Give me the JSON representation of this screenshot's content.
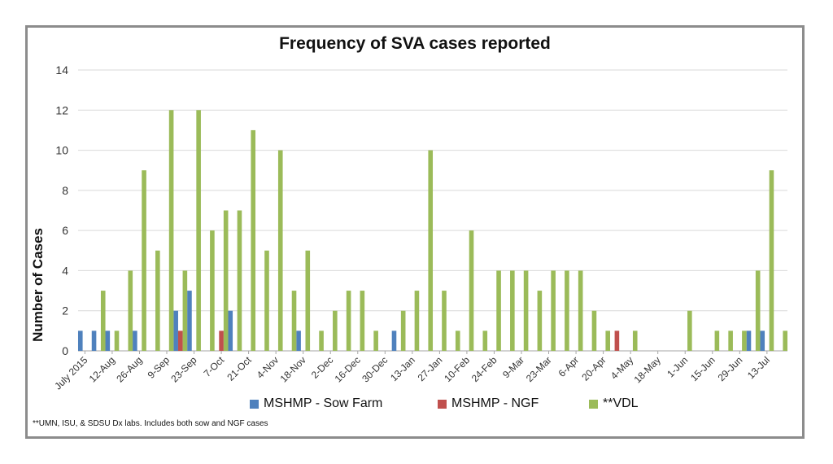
{
  "chart_data": {
    "type": "bar",
    "title": "Frequency of SVA cases reported",
    "ylabel": "Number of Cases",
    "xlabel": "",
    "ylim": [
      0,
      14
    ],
    "yticks": [
      0,
      2,
      4,
      6,
      8,
      10,
      12,
      14
    ],
    "grid": true,
    "legend_position": "bottom",
    "xtick_labels": [
      "July 2015",
      "12-Aug",
      "26-Aug",
      "9-Sep",
      "23-Sep",
      "7-Oct",
      "21-Oct",
      "4-Nov",
      "18-Nov",
      "2-Dec",
      "16-Dec",
      "30-Dec",
      "13-Jan",
      "27-Jan",
      "10-Feb",
      "24-Feb",
      "9-Mar",
      "23-Mar",
      "6-Apr",
      "20-Apr",
      "4-May",
      "18-May",
      "1-Jun",
      "15-Jun",
      "29-Jun",
      "13-Jul"
    ],
    "series": [
      {
        "name": "MSHMP - Sow Farm",
        "color": "#4f81bd",
        "values": [
          1,
          1,
          1,
          0,
          1,
          0,
          0,
          2,
          3,
          0,
          0,
          2,
          0,
          0,
          0,
          0,
          1,
          0,
          0,
          0,
          0,
          0,
          0,
          1,
          0,
          0,
          0,
          0,
          0,
          0,
          0,
          0,
          0,
          0,
          0,
          0,
          0,
          0,
          0,
          0,
          0,
          0,
          0,
          0,
          0,
          0,
          0,
          0,
          0,
          1,
          1,
          0
        ]
      },
      {
        "name": "MSHMP - NGF",
        "color": "#c0504d",
        "values": [
          0,
          0,
          0,
          0,
          0,
          0,
          0,
          1,
          0,
          0,
          1,
          0,
          0,
          0,
          0,
          0,
          0,
          0,
          0,
          0,
          0,
          0,
          0,
          0,
          0,
          0,
          0,
          0,
          0,
          0,
          0,
          0,
          0,
          0,
          0,
          0,
          0,
          0,
          0,
          1,
          0,
          0,
          0,
          0,
          0,
          0,
          0,
          0,
          0,
          0,
          0,
          0
        ]
      },
      {
        "name": "**VDL",
        "color": "#9bbb59",
        "values": [
          0,
          3,
          1,
          4,
          9,
          5,
          12,
          4,
          12,
          6,
          7,
          7,
          11,
          5,
          10,
          3,
          5,
          1,
          2,
          3,
          3,
          1,
          0,
          2,
          3,
          10,
          3,
          1,
          6,
          1,
          4,
          4,
          4,
          3,
          4,
          4,
          4,
          2,
          1,
          0,
          1,
          0,
          0,
          0,
          2,
          0,
          1,
          1,
          1,
          4,
          9,
          1
        ]
      }
    ]
  },
  "footnote": "**UMN, ISU, & SDSU Dx labs. Includes both sow and NGF cases"
}
